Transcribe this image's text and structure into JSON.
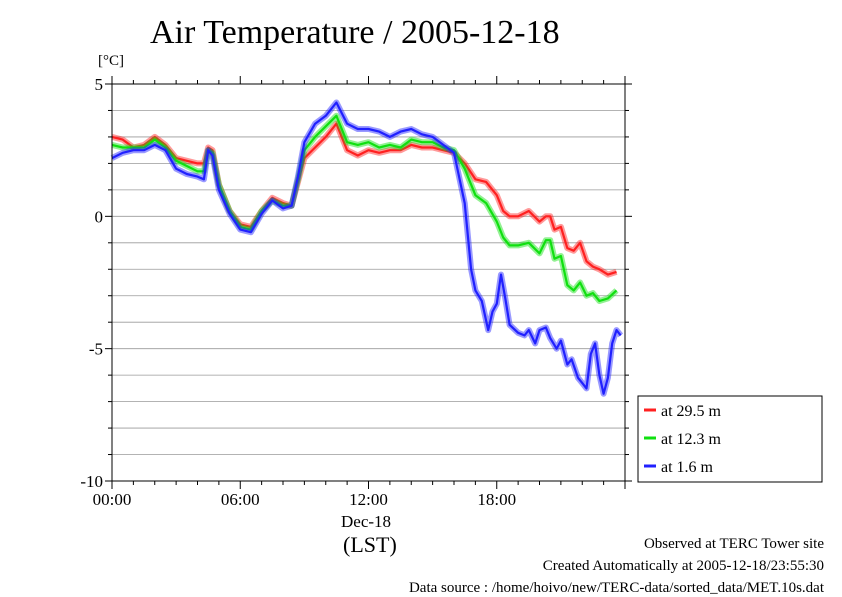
{
  "chart_data": {
    "type": "line",
    "title": "Air Temperature / 2005-12-18",
    "ylabel_unit": "[°C]",
    "xlabel": "(LST)",
    "x_date_label": "Dec-18",
    "x_ticks": [
      {
        "hour": 0,
        "label": "00:00"
      },
      {
        "hour": 6,
        "label": "06:00"
      },
      {
        "hour": 12,
        "label": "12:00"
      },
      {
        "hour": 18,
        "label": "18:00"
      }
    ],
    "xlim": [
      0,
      24
    ],
    "ylim": [
      -10,
      5
    ],
    "y_ticks": [
      {
        "value": 5,
        "label": "5"
      },
      {
        "value": 0,
        "label": "0"
      },
      {
        "value": -5,
        "label": "-5"
      },
      {
        "value": -10,
        "label": "-10"
      }
    ],
    "grid": "horizontal every 1 °C",
    "legend_position": "right, bottom",
    "series": [
      {
        "name": "at 29.5 m",
        "color": "#ff2020",
        "points": [
          [
            0,
            3.0
          ],
          [
            0.5,
            2.9
          ],
          [
            1,
            2.6
          ],
          [
            1.5,
            2.7
          ],
          [
            2,
            3.0
          ],
          [
            2.5,
            2.7
          ],
          [
            3,
            2.2
          ],
          [
            3.5,
            2.1
          ],
          [
            4,
            2.0
          ],
          [
            4.3,
            2.0
          ],
          [
            4.5,
            2.6
          ],
          [
            4.7,
            2.5
          ],
          [
            5,
            1.2
          ],
          [
            5.5,
            0.2
          ],
          [
            6,
            -0.3
          ],
          [
            6.5,
            -0.4
          ],
          [
            7,
            0.2
          ],
          [
            7.5,
            0.7
          ],
          [
            8,
            0.5
          ],
          [
            8.4,
            0.4
          ],
          [
            8.7,
            1.3
          ],
          [
            9,
            2.2
          ],
          [
            9.5,
            2.6
          ],
          [
            10,
            3.0
          ],
          [
            10.5,
            3.5
          ],
          [
            11,
            2.5
          ],
          [
            11.5,
            2.3
          ],
          [
            12,
            2.5
          ],
          [
            12.5,
            2.4
          ],
          [
            13,
            2.5
          ],
          [
            13.5,
            2.5
          ],
          [
            14,
            2.7
          ],
          [
            14.5,
            2.6
          ],
          [
            15,
            2.6
          ],
          [
            15.5,
            2.5
          ],
          [
            16,
            2.4
          ],
          [
            16.5,
            2.0
          ],
          [
            17,
            1.4
          ],
          [
            17.5,
            1.3
          ],
          [
            18,
            0.8
          ],
          [
            18.3,
            0.2
          ],
          [
            18.6,
            0.0
          ],
          [
            19,
            0.0
          ],
          [
            19.5,
            0.2
          ],
          [
            20,
            -0.2
          ],
          [
            20.3,
            0.0
          ],
          [
            20.5,
            0.0
          ],
          [
            20.7,
            -0.5
          ],
          [
            21,
            -0.4
          ],
          [
            21.3,
            -1.2
          ],
          [
            21.6,
            -1.3
          ],
          [
            21.9,
            -1.0
          ],
          [
            22.2,
            -1.7
          ],
          [
            22.5,
            -1.9
          ],
          [
            22.8,
            -2.0
          ],
          [
            23.2,
            -2.2
          ],
          [
            23.6,
            -2.1
          ]
        ]
      },
      {
        "name": "at 12.3 m",
        "color": "#10e010",
        "points": [
          [
            0,
            2.7
          ],
          [
            0.5,
            2.6
          ],
          [
            1,
            2.6
          ],
          [
            1.5,
            2.6
          ],
          [
            2,
            2.9
          ],
          [
            2.5,
            2.6
          ],
          [
            3,
            2.1
          ],
          [
            3.5,
            1.9
          ],
          [
            4,
            1.7
          ],
          [
            4.3,
            1.7
          ],
          [
            4.5,
            2.5
          ],
          [
            4.7,
            2.4
          ],
          [
            5,
            1.2
          ],
          [
            5.5,
            0.2
          ],
          [
            6,
            -0.4
          ],
          [
            6.5,
            -0.5
          ],
          [
            7,
            0.2
          ],
          [
            7.5,
            0.6
          ],
          [
            8,
            0.4
          ],
          [
            8.4,
            0.4
          ],
          [
            8.7,
            1.4
          ],
          [
            9,
            2.5
          ],
          [
            9.5,
            3.0
          ],
          [
            10,
            3.4
          ],
          [
            10.5,
            3.8
          ],
          [
            11,
            2.8
          ],
          [
            11.5,
            2.7
          ],
          [
            12,
            2.8
          ],
          [
            12.5,
            2.6
          ],
          [
            13,
            2.7
          ],
          [
            13.5,
            2.6
          ],
          [
            14,
            2.9
          ],
          [
            14.5,
            2.8
          ],
          [
            15,
            2.8
          ],
          [
            15.5,
            2.6
          ],
          [
            16,
            2.5
          ],
          [
            16.5,
            1.8
          ],
          [
            17,
            0.8
          ],
          [
            17.5,
            0.5
          ],
          [
            18,
            -0.2
          ],
          [
            18.3,
            -0.8
          ],
          [
            18.6,
            -1.1
          ],
          [
            19,
            -1.1
          ],
          [
            19.5,
            -1.0
          ],
          [
            20,
            -1.4
          ],
          [
            20.3,
            -0.9
          ],
          [
            20.5,
            -0.9
          ],
          [
            20.7,
            -1.6
          ],
          [
            21,
            -1.5
          ],
          [
            21.3,
            -2.6
          ],
          [
            21.6,
            -2.8
          ],
          [
            21.9,
            -2.5
          ],
          [
            22.2,
            -3.0
          ],
          [
            22.5,
            -2.9
          ],
          [
            22.8,
            -3.2
          ],
          [
            23.2,
            -3.1
          ],
          [
            23.6,
            -2.8
          ]
        ]
      },
      {
        "name": "at 1.6 m",
        "color": "#2020ff",
        "points": [
          [
            0,
            2.2
          ],
          [
            0.5,
            2.4
          ],
          [
            1,
            2.5
          ],
          [
            1.5,
            2.5
          ],
          [
            2,
            2.7
          ],
          [
            2.5,
            2.5
          ],
          [
            3,
            1.8
          ],
          [
            3.5,
            1.6
          ],
          [
            4,
            1.5
          ],
          [
            4.3,
            1.4
          ],
          [
            4.5,
            2.5
          ],
          [
            4.7,
            2.3
          ],
          [
            5,
            1.0
          ],
          [
            5.5,
            0.1
          ],
          [
            6,
            -0.5
          ],
          [
            6.5,
            -0.6
          ],
          [
            7,
            0.1
          ],
          [
            7.5,
            0.6
          ],
          [
            8,
            0.3
          ],
          [
            8.4,
            0.4
          ],
          [
            8.7,
            1.5
          ],
          [
            9,
            2.8
          ],
          [
            9.5,
            3.5
          ],
          [
            10,
            3.8
          ],
          [
            10.5,
            4.3
          ],
          [
            11,
            3.5
          ],
          [
            11.5,
            3.3
          ],
          [
            12,
            3.3
          ],
          [
            12.5,
            3.2
          ],
          [
            13,
            3.0
          ],
          [
            13.5,
            3.2
          ],
          [
            14,
            3.3
          ],
          [
            14.5,
            3.1
          ],
          [
            15,
            3.0
          ],
          [
            15.5,
            2.7
          ],
          [
            16,
            2.4
          ],
          [
            16.5,
            0.5
          ],
          [
            16.8,
            -2.0
          ],
          [
            17,
            -2.8
          ],
          [
            17.3,
            -3.2
          ],
          [
            17.6,
            -4.3
          ],
          [
            17.8,
            -3.6
          ],
          [
            18,
            -3.3
          ],
          [
            18.2,
            -2.2
          ],
          [
            18.4,
            -3.1
          ],
          [
            18.6,
            -4.1
          ],
          [
            19,
            -4.4
          ],
          [
            19.3,
            -4.5
          ],
          [
            19.5,
            -4.3
          ],
          [
            19.8,
            -4.8
          ],
          [
            20,
            -4.3
          ],
          [
            20.3,
            -4.2
          ],
          [
            20.5,
            -4.6
          ],
          [
            20.8,
            -5.0
          ],
          [
            21,
            -4.7
          ],
          [
            21.3,
            -5.6
          ],
          [
            21.5,
            -5.4
          ],
          [
            21.8,
            -6.1
          ],
          [
            22,
            -6.3
          ],
          [
            22.2,
            -6.5
          ],
          [
            22.4,
            -5.2
          ],
          [
            22.6,
            -4.8
          ],
          [
            22.8,
            -6.0
          ],
          [
            23,
            -6.7
          ],
          [
            23.2,
            -6.1
          ],
          [
            23.4,
            -4.8
          ],
          [
            23.6,
            -4.3
          ],
          [
            23.8,
            -4.5
          ]
        ]
      }
    ]
  },
  "footer": {
    "line1": "Observed at TERC Tower site",
    "line2": "Created Automatically at 2005-12-18/23:55:30",
    "line3": "Data source : /home/hoivo/new/TERC-data/sorted_data/MET.10s.dat"
  }
}
